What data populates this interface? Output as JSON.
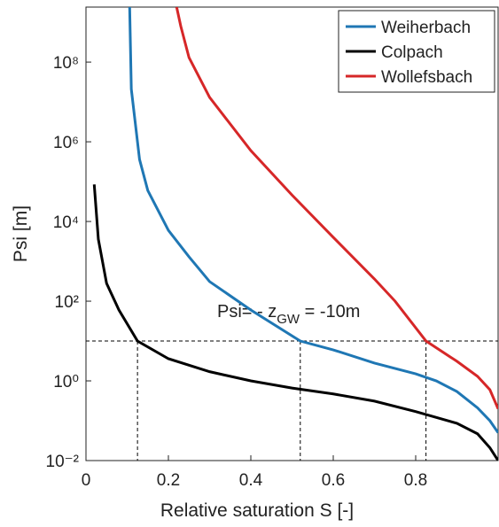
{
  "chart_data": {
    "type": "line",
    "log_y": true,
    "xlabel": "Relative saturation S [-]",
    "ylabel": "Psi [m]",
    "xlim": [
      0,
      1
    ],
    "ylim": [
      0.01,
      2400000000
    ],
    "xticks": [
      0,
      0.2,
      0.4,
      0.6,
      0.8
    ],
    "yticks": [
      {
        "value": 0.01,
        "label": "10⁻²"
      },
      {
        "value": 1,
        "label": "10⁰"
      },
      {
        "value": 100,
        "label": "10²"
      },
      {
        "value": 10000,
        "label": "10⁴"
      },
      {
        "value": 1000000,
        "label": "10⁶"
      },
      {
        "value": 100000000,
        "label": "10⁸"
      }
    ],
    "legend": "top-right",
    "series": [
      {
        "name": "Weiherbach",
        "color": "#1f77b4",
        "x": [
          0.106,
          0.11,
          0.13,
          0.15,
          0.2,
          0.25,
          0.3,
          0.4,
          0.52,
          0.6,
          0.7,
          0.8,
          0.85,
          0.9,
          0.95,
          0.98,
          1.0
        ],
        "values": [
          2400000000,
          21000000,
          360000,
          60000,
          6000,
          1300,
          310,
          60,
          10,
          6,
          2.8,
          1.5,
          1.0,
          0.54,
          0.21,
          0.1,
          0.05
        ]
      },
      {
        "name": "Colpach",
        "color": "#000000",
        "x": [
          0.02,
          0.03,
          0.05,
          0.08,
          0.125,
          0.2,
          0.3,
          0.4,
          0.5,
          0.6,
          0.7,
          0.8,
          0.9,
          0.95,
          0.98,
          1.0
        ],
        "values": [
          85000,
          3600,
          280,
          60,
          10,
          3.6,
          1.7,
          1.0,
          0.66,
          0.47,
          0.31,
          0.17,
          0.086,
          0.047,
          0.021,
          0.01
        ]
      },
      {
        "name": "Wollefsbach",
        "color": "#d62728",
        "x": [
          0.22,
          0.23,
          0.25,
          0.3,
          0.4,
          0.5,
          0.6,
          0.7,
          0.75,
          0.825,
          0.9,
          0.95,
          0.98,
          1.0
        ],
        "values": [
          2400000000,
          800000000,
          130000000,
          13000000,
          600000,
          46000,
          4000,
          360,
          100,
          10,
          3.1,
          1.3,
          0.6,
          0.2
        ]
      }
    ],
    "reference_lines": {
      "y": 10,
      "x": [
        0.125,
        0.52,
        0.825
      ]
    },
    "annotation": {
      "main": "Psi= - z",
      "subscript": "GW",
      "rest": " = -10m"
    }
  }
}
